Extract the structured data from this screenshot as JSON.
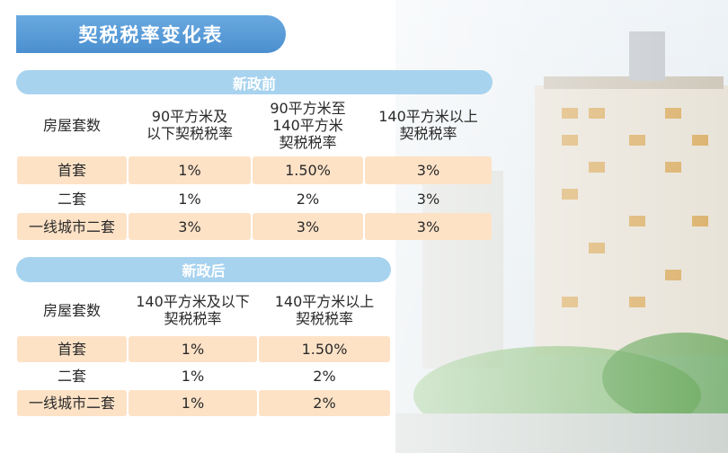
{
  "header": {
    "title": "契税税率变化表"
  },
  "sections": [
    {
      "title": "新政前",
      "columns": [
        "房屋套数",
        "90平方米及\n以下契税税率",
        "90平方米至\n140平方米\n契税税率",
        "140平方米以上\n契税税率"
      ],
      "rows": [
        [
          "首套",
          "1%",
          "1.50%",
          "3%"
        ],
        [
          "二套",
          "1%",
          "2%",
          "3%"
        ],
        [
          "一线城市二套",
          "3%",
          "3%",
          "3%"
        ]
      ]
    },
    {
      "title": "新政后",
      "columns": [
        "房屋套数",
        "140平方米及以下\n契税税率",
        "140平方米以上\n契税税率"
      ],
      "rows": [
        [
          "首套",
          "1%",
          "1.50%"
        ],
        [
          "二套",
          "1%",
          "2%"
        ],
        [
          "一线城市二套",
          "1%",
          "2%"
        ]
      ]
    }
  ]
}
